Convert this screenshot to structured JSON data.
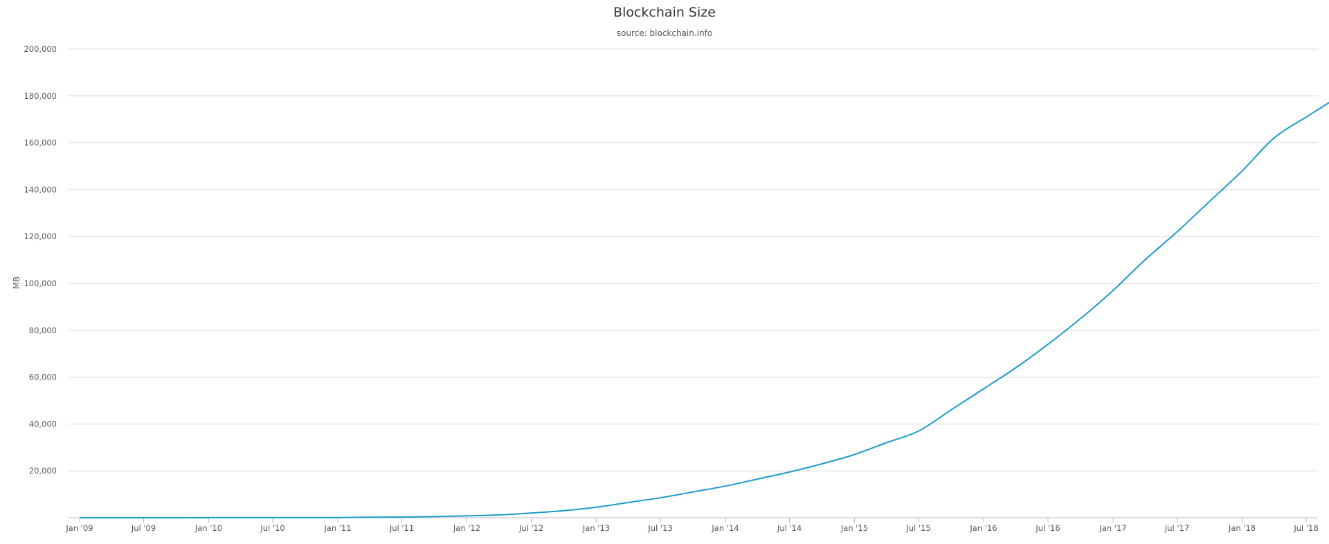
{
  "chart_data": {
    "type": "line",
    "title": "Blockchain Size",
    "subtitle": "source: blockchain.info",
    "xlabel": "",
    "ylabel": "MB",
    "ylim": [
      0,
      200000
    ],
    "yticks": [
      20000,
      40000,
      60000,
      80000,
      100000,
      120000,
      140000,
      160000,
      180000,
      200000
    ],
    "ytick_labels": [
      "20,000",
      "40,000",
      "60,000",
      "80,000",
      "100,000",
      "120,000",
      "140,000",
      "160,000",
      "180,000",
      "200,000"
    ],
    "xlim": [
      "2009-01-01",
      "2018-10-31"
    ],
    "xticks": [
      "2009-01-01",
      "2009-07-01",
      "2010-01-01",
      "2010-07-01",
      "2011-01-01",
      "2011-07-01",
      "2012-01-01",
      "2012-07-01",
      "2013-01-01",
      "2013-07-01",
      "2014-01-01",
      "2014-07-01",
      "2015-01-01",
      "2015-07-01",
      "2016-01-01",
      "2016-07-01",
      "2017-01-01",
      "2017-07-01",
      "2018-01-01",
      "2018-07-01"
    ],
    "xtick_labels": [
      "Jan '09",
      "Jul '09",
      "Jan '10",
      "Jul '10",
      "Jan '11",
      "Jul '11",
      "Jan '12",
      "Jul '12",
      "Jan '13",
      "Jul '13",
      "Jan '14",
      "Jul '14",
      "Jan '15",
      "Jul '15",
      "Jan '16",
      "Jul '16",
      "Jan '17",
      "Jul '17",
      "Jan '18",
      "Jul '18"
    ],
    "grid": true,
    "legend": "none",
    "series": [
      {
        "color": "#1b9bcb",
        "x": [
          "2009-01-03",
          "2009-07-01",
          "2010-01-01",
          "2010-07-01",
          "2011-01-01",
          "2011-04-01",
          "2011-07-01",
          "2011-10-01",
          "2012-01-01",
          "2012-04-01",
          "2012-07-01",
          "2012-10-01",
          "2013-01-01",
          "2013-04-01",
          "2013-07-01",
          "2013-10-01",
          "2014-01-01",
          "2014-04-01",
          "2014-07-01",
          "2014-10-01",
          "2015-01-01",
          "2015-04-01",
          "2015-07-01",
          "2015-10-01",
          "2016-01-01",
          "2016-04-01",
          "2016-07-01",
          "2016-10-01",
          "2017-01-01",
          "2017-04-01",
          "2017-07-01",
          "2017-10-01",
          "2018-01-01",
          "2018-04-01",
          "2018-07-01",
          "2018-10-15"
        ],
        "values": [
          0,
          10,
          20,
          40,
          100,
          200,
          300,
          500,
          800,
          1200,
          2000,
          3000,
          4500,
          6500,
          8500,
          11000,
          13500,
          16500,
          19500,
          23000,
          27000,
          32000,
          37000,
          46000,
          55000,
          64000,
          74000,
          85000,
          97000,
          110000,
          122000,
          135000,
          148000,
          162000,
          171000,
          181000
        ]
      }
    ]
  }
}
